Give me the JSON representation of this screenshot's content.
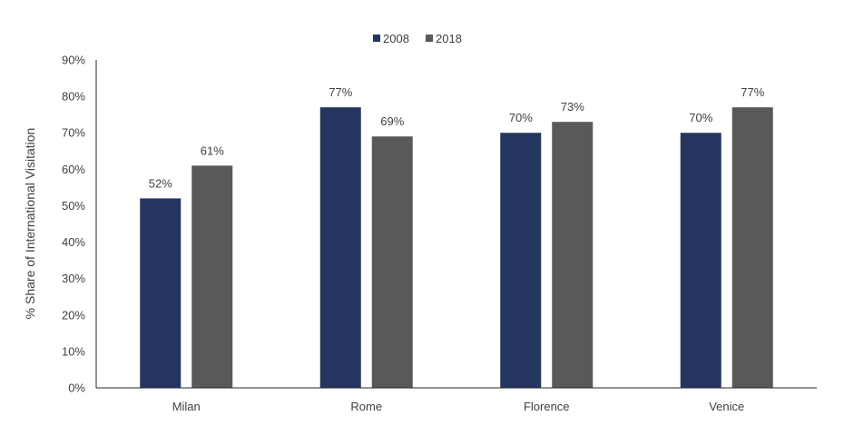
{
  "chart_data": {
    "type": "bar",
    "title": "",
    "xlabel": "",
    "ylabel": "% Share of International Visitation",
    "categories": [
      "Milan",
      "Rome",
      "Florence",
      "Venice"
    ],
    "series": [
      {
        "name": "2008",
        "values": [
          52,
          77,
          70,
          70
        ],
        "color": "#243660"
      },
      {
        "name": "2018",
        "values": [
          61,
          69,
          73,
          77
        ],
        "color": "#595959"
      }
    ],
    "data_labels": [
      [
        "52%",
        "77%",
        "70%",
        "70%"
      ],
      [
        "61%",
        "69%",
        "73%",
        "77%"
      ]
    ],
    "ylim": [
      0,
      90
    ],
    "yticks": [
      0,
      10,
      20,
      30,
      40,
      50,
      60,
      70,
      80,
      90
    ],
    "ytick_labels": [
      "0%",
      "10%",
      "20%",
      "30%",
      "40%",
      "50%",
      "60%",
      "70%",
      "80%",
      "90%"
    ],
    "grid": false,
    "legend_position": "top-center"
  }
}
